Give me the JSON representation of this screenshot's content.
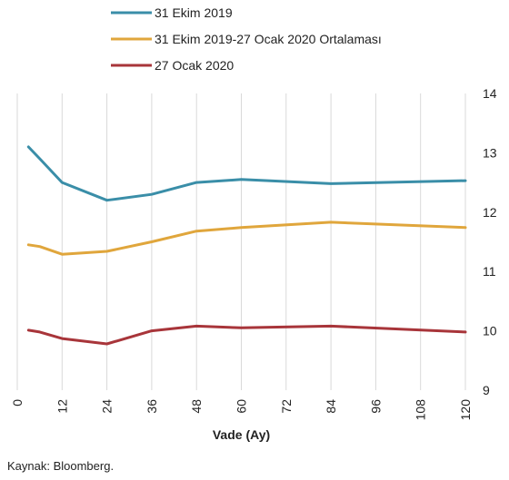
{
  "chart_data": {
    "type": "line",
    "xlabel": "Vade (Ay)",
    "ylabel": "",
    "xlim": [
      0,
      120
    ],
    "ylim": [
      9,
      14
    ],
    "x_ticks": [
      0,
      12,
      24,
      36,
      48,
      60,
      72,
      84,
      96,
      108,
      120
    ],
    "y_ticks": [
      9,
      10,
      11,
      12,
      13,
      14
    ],
    "y_axis_position": "right",
    "grid": "vertical",
    "legend_position": "top",
    "series": [
      {
        "name": "31 Ekim 2019",
        "color": "#3a8ea8",
        "x": [
          3,
          6,
          12,
          24,
          36,
          48,
          60,
          84,
          120
        ],
        "values": [
          13.1,
          12.9,
          12.5,
          12.2,
          12.3,
          12.5,
          12.55,
          12.48,
          12.53
        ]
      },
      {
        "name": "31 Ekim 2019-27 Ocak 2020 Ortalaması",
        "color": "#e0a63c",
        "x": [
          3,
          6,
          12,
          24,
          36,
          48,
          60,
          84,
          120
        ],
        "values": [
          11.45,
          11.42,
          11.29,
          11.34,
          11.5,
          11.68,
          11.74,
          11.83,
          11.74
        ]
      },
      {
        "name": "27 Ocak 2020",
        "color": "#a8353a",
        "x": [
          3,
          6,
          12,
          24,
          36,
          48,
          60,
          84,
          120
        ],
        "values": [
          10.01,
          9.98,
          9.87,
          9.78,
          10.0,
          10.08,
          10.05,
          10.08,
          9.98
        ]
      }
    ]
  },
  "source": "Kaynak: Bloomberg."
}
